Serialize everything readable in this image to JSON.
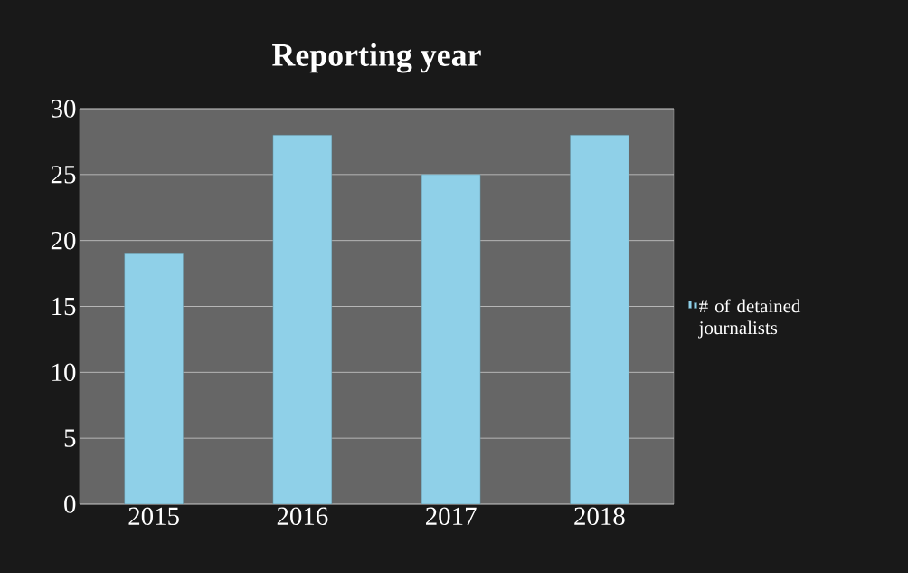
{
  "chart_data": {
    "type": "bar",
    "title": "Reporting year",
    "categories": [
      "2015",
      "2016",
      "2017",
      "2018"
    ],
    "series": [
      {
        "name": "# of detained journalists",
        "color": "#8fd0e8",
        "values": [
          19,
          28,
          25,
          28
        ]
      }
    ],
    "ylim": [
      0,
      30
    ],
    "yticks": [
      0,
      5,
      10,
      15,
      20,
      25,
      30
    ],
    "grid": "y",
    "legend": "right"
  }
}
